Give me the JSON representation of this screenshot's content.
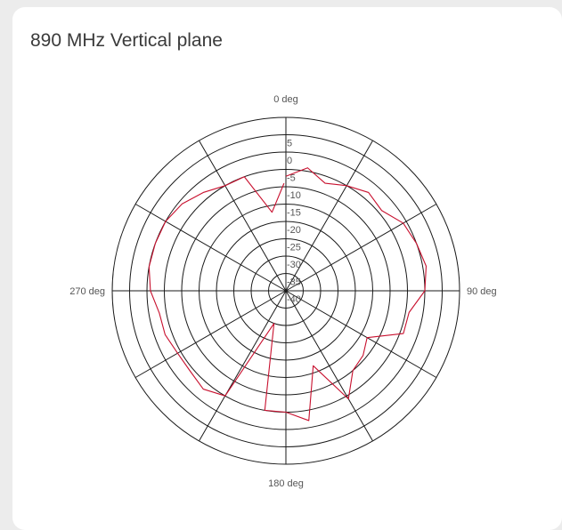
{
  "chart_data": {
    "type": "polar-line",
    "title": "890 MHz Vertical plane",
    "radial_ticks": [
      "5",
      "0",
      "-5",
      "-10",
      "-15",
      "-20",
      "-25",
      "-30",
      "-35",
      "-40"
    ],
    "radial_values": [
      5,
      0,
      -5,
      -10,
      -15,
      -20,
      -25,
      -30,
      -35,
      -40
    ],
    "rlim": [
      -40,
      10
    ],
    "angle_labels": [
      "0 deg",
      "90 deg",
      "180 deg",
      "270 deg"
    ],
    "angle_label_values": [
      0,
      90,
      180,
      270
    ],
    "spoke_step_deg": 30,
    "grid": true,
    "series": [
      {
        "color": "#c8102e",
        "theta": [
          0,
          10,
          20,
          30,
          40,
          50,
          60,
          70,
          80,
          90,
          100,
          110,
          120,
          130,
          140,
          150,
          160,
          170,
          180,
          190,
          200,
          210,
          220,
          230,
          240,
          250,
          260,
          270,
          280,
          290,
          300,
          310,
          320,
          330,
          340,
          350,
          359
        ],
        "r": [
          -7,
          -4,
          -7,
          -5,
          -3,
          -4,
          -1,
          0,
          1,
          0,
          -4,
          -4,
          -13,
          -11,
          -10,
          -4,
          -17,
          -2,
          -5,
          -5,
          -30,
          -5,
          -3,
          -4,
          -4,
          -3,
          -3,
          -1,
          0,
          0,
          0,
          -1,
          -3,
          -5,
          -5,
          -17,
          -9
        ]
      }
    ]
  }
}
